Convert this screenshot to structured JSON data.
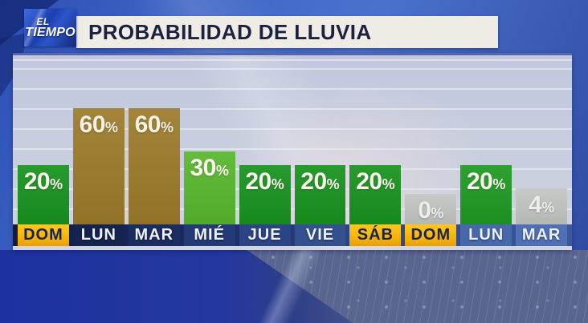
{
  "logo": {
    "line1": "EL",
    "line2": "TIEMPO"
  },
  "header": {
    "title": "PROBABILIDAD DE LLUVIA"
  },
  "palette": {
    "title_text": "#1b2240",
    "title_bar_bg": "#efebe5",
    "green_bar": "#18931e",
    "brown_bar": "#9c7b2b",
    "light_green_bar": "#58b72d",
    "gray_bar": "#c2c6c2",
    "gold_label_bg": "#f6b705",
    "gold_label_text": "#1a2342",
    "label_band_dark": "#0f1c45",
    "label_band_light": "#4f70b8",
    "value_text": "#f8f5ec",
    "background_blue": "#3f66c6"
  },
  "chart_data": {
    "type": "bar",
    "title": "PROBABILIDAD DE LLUVIA",
    "unit": "%",
    "ylim": [
      0,
      100
    ],
    "grid": "horizontal",
    "legend": "none",
    "categories": [
      "DOM",
      "LUN",
      "MAR",
      "MIÉ",
      "JUE",
      "VIE",
      "SÁB",
      "DOM",
      "LUN",
      "MAR"
    ],
    "values": [
      20,
      60,
      60,
      30,
      20,
      20,
      20,
      0,
      20,
      4
    ],
    "bars": [
      {
        "day": "DOM",
        "value": 20,
        "bar_color": "#18931e",
        "value_color": "#f8f5ec",
        "label_style": "gold",
        "label_bg": ""
      },
      {
        "day": "LUN",
        "value": 60,
        "bar_color": "#9c7b2b",
        "value_color": "#f6f2e4",
        "label_style": "blue",
        "label_bg": "#15234f"
      },
      {
        "day": "MAR",
        "value": 60,
        "bar_color": "#9c7b2b",
        "value_color": "#f6f2e4",
        "label_style": "blue",
        "label_bg": "#1b2c61"
      },
      {
        "day": "MIÉ",
        "value": 30,
        "bar_color": "#58b72d",
        "value_color": "#fbfaf2",
        "label_style": "blue",
        "label_bg": "#233a77"
      },
      {
        "day": "JUE",
        "value": 20,
        "bar_color": "#18931e",
        "value_color": "#f8f5ec",
        "label_style": "blue",
        "label_bg": "#2b4486"
      },
      {
        "day": "VIE",
        "value": 20,
        "bar_color": "#18931e",
        "value_color": "#f8f5ec",
        "label_style": "blue",
        "label_bg": "#34508f"
      },
      {
        "day": "SÁB",
        "value": 20,
        "bar_color": "#18931e",
        "value_color": "#f8f5ec",
        "label_style": "gold",
        "label_bg": ""
      },
      {
        "day": "DOM",
        "value": 0,
        "bar_color": "#c2c6c2",
        "value_color": "#eceee9",
        "label_style": "gold",
        "label_bg": ""
      },
      {
        "day": "LUN",
        "value": 20,
        "bar_color": "#1f9a24",
        "value_color": "#f8f5ec",
        "label_style": "blue",
        "label_bg": "#4868ac"
      },
      {
        "day": "MAR",
        "value": 4,
        "bar_color": "#c2c6c2",
        "value_color": "#eceee9",
        "label_style": "blue",
        "label_bg": "#4f70b6"
      }
    ]
  }
}
